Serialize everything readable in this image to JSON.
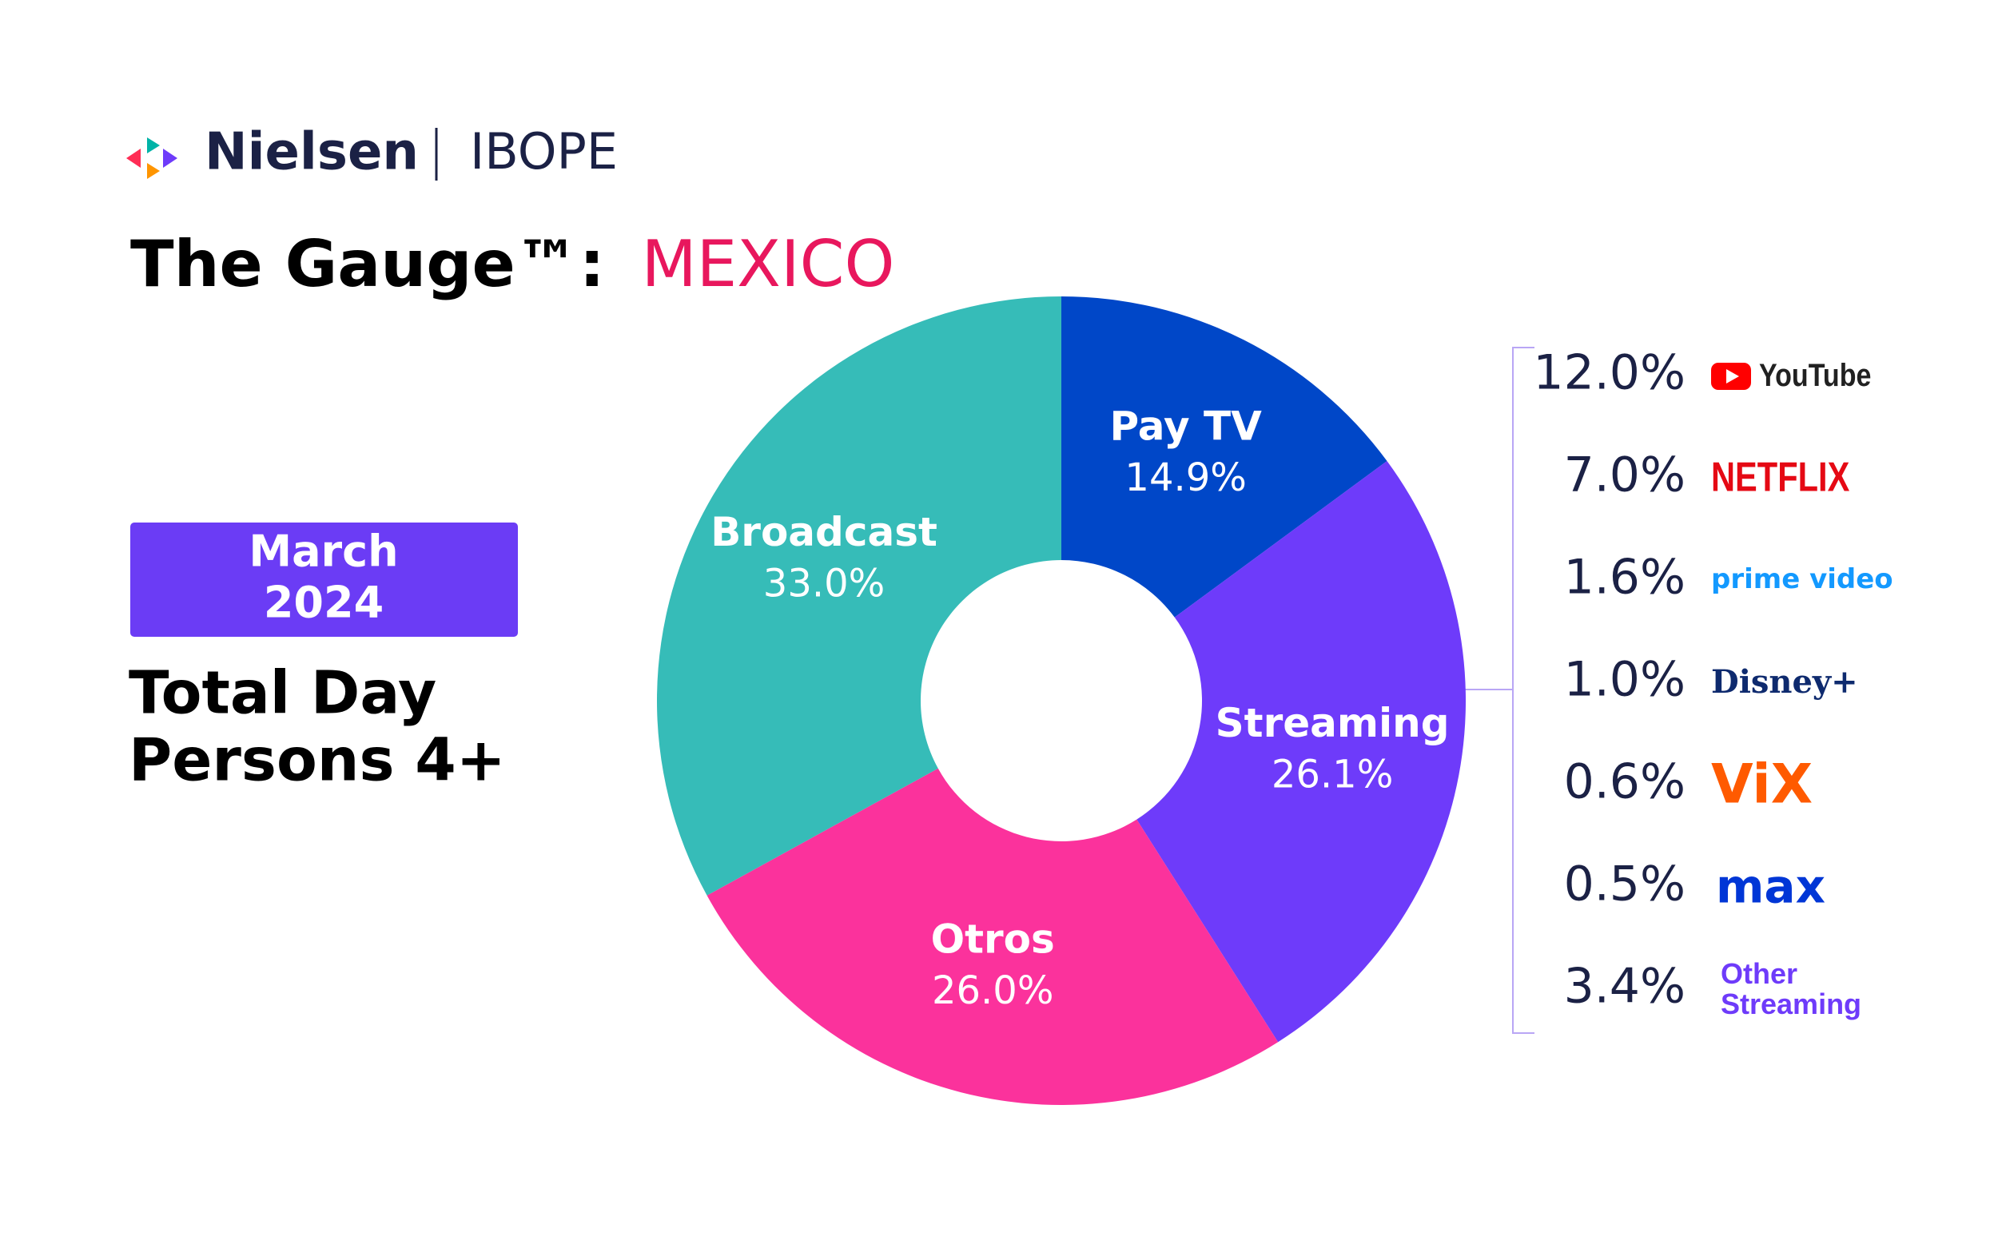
{
  "header": {
    "brand": "Nielsen",
    "partner": "IBOPE"
  },
  "chart_data": {
    "type": "pie",
    "title": "The Gauge™:",
    "title_highlight": "MEXICO",
    "date_label": [
      "March",
      "2024"
    ],
    "subtitle": [
      "Total Day",
      "Persons 4+"
    ],
    "categories": [
      "Pay TV",
      "Streaming",
      "Otros",
      "Broadcast"
    ],
    "values": [
      14.9,
      26.1,
      26.0,
      33.0
    ],
    "value_labels": [
      "14.9%",
      "26.1%",
      "26.0%",
      "33.0%"
    ],
    "colors": [
      "#0047c8",
      "#6e3bfa",
      "#fb329c",
      "#36bcb8"
    ],
    "breakdown": {
      "names": [
        "YouTube",
        "NETFLIX",
        "prime video",
        "Disney+",
        "ViX",
        "max",
        "Other Streaming"
      ],
      "values": [
        12.0,
        7.0,
        1.6,
        1.0,
        0.6,
        0.5,
        3.4
      ],
      "value_labels": [
        "12.0%",
        "7.0%",
        "1.6%",
        "1.0%",
        "0.6%",
        "0.5%",
        "3.4%"
      ],
      "colors": [
        "#212121",
        "#e50914",
        "#1399ff",
        "#0e2a6e",
        "#ff5a00",
        "#0036d6",
        "#6e3bfa"
      ]
    }
  }
}
